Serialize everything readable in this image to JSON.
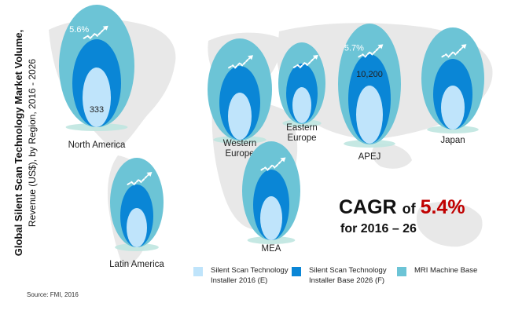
{
  "chart_data": {
    "type": "other",
    "title_line1": "Global Silent Scan Technology Market Volume,",
    "title_line2": "Revenue (US$), by Region, 2016 - 2026",
    "series": [
      {
        "name": "Silent Scan Technology Installer 2016 (E)",
        "color": "#bfe4fb"
      },
      {
        "name": "Silent Scan Technology Installer Base 2026 (F)",
        "color": "#0a86d6"
      },
      {
        "name": "MRI Machine Base",
        "color": "#6cc4d6"
      }
    ],
    "legend": [
      {
        "line1": "Silent Scan Technology",
        "line2": "Installer 2016 (E)",
        "color": "#bfe4fb"
      },
      {
        "line1": "Silent Scan Technology",
        "line2": "Installer Base 2026 (F)",
        "color": "#0a86d6"
      },
      {
        "line1": "MRI Machine Base",
        "line2": "",
        "color": "#6cc4d6"
      }
    ],
    "regions": [
      {
        "name": "North America",
        "label_lines": [
          "North America"
        ],
        "value": "333",
        "growth": "5.6%"
      },
      {
        "name": "Western Europe",
        "label_lines": [
          "Western",
          "Europe"
        ],
        "value": "",
        "growth": ""
      },
      {
        "name": "Eastern Europe",
        "label_lines": [
          "Eastern",
          "Europe"
        ],
        "value": "",
        "growth": ""
      },
      {
        "name": "APEJ",
        "label_lines": [
          "APEJ"
        ],
        "value": "10,200",
        "growth": "5.7%"
      },
      {
        "name": "Japan",
        "label_lines": [
          "Japan"
        ],
        "value": "",
        "growth": ""
      },
      {
        "name": "Latin America",
        "label_lines": [
          "Latin America"
        ],
        "value": "",
        "growth": ""
      },
      {
        "name": "MEA",
        "label_lines": [
          "MEA"
        ],
        "value": "",
        "growth": ""
      }
    ],
    "cagr": {
      "word": "CAGR",
      "of": "of",
      "value": "5.4%",
      "period": "for 2016 – 26"
    },
    "source": "Source: FMI, 2016"
  }
}
